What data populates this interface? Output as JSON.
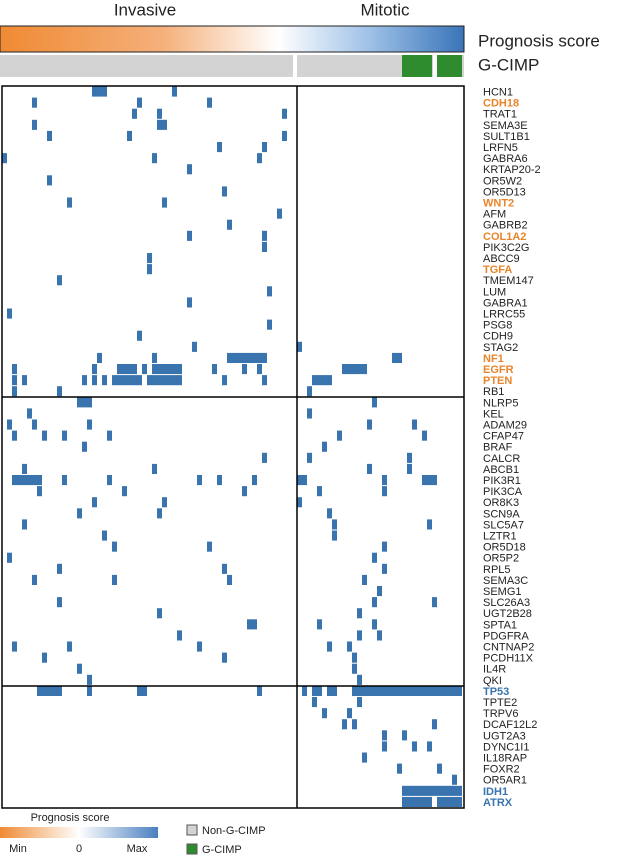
{
  "chart_data": {
    "type": "heatmap",
    "groups": [
      "Invasive",
      "Mitotic"
    ],
    "score_label": "Prognosis score",
    "gcimp_label": "G-CIMP",
    "gcimp_samples": [
      80,
      81,
      82,
      83,
      84,
      85,
      87,
      88,
      89,
      90,
      91
    ],
    "missing_samples": [
      58,
      86
    ],
    "mutation_color": "#3a74ae",
    "gcimp_color": "#2e8b2e",
    "non_gcimp_color": "#d3d3d3",
    "genes": [
      {
        "name": "HCN1",
        "samples": [
          18,
          19,
          20,
          34
        ]
      },
      {
        "name": "CDH18",
        "color": "#e8852a",
        "samples": [
          6,
          27,
          41
        ]
      },
      {
        "name": "TRAT1",
        "samples": [
          26,
          31,
          56
        ]
      },
      {
        "name": "SEMA3E",
        "samples": [
          6,
          31,
          32
        ]
      },
      {
        "name": "SULT1B1",
        "samples": [
          9,
          25,
          56
        ]
      },
      {
        "name": "LRFN5",
        "samples": [
          43,
          52
        ]
      },
      {
        "name": "GABRA6",
        "samples": [
          0,
          30,
          51
        ]
      },
      {
        "name": "KRTAP20-2",
        "samples": [
          37
        ]
      },
      {
        "name": "OR5W2",
        "samples": [
          9
        ]
      },
      {
        "name": "OR5D13",
        "samples": [
          44
        ]
      },
      {
        "name": "WNT2",
        "color": "#e8852a",
        "samples": [
          13,
          32
        ]
      },
      {
        "name": "AFM",
        "samples": [
          55
        ]
      },
      {
        "name": "GABRB2",
        "samples": [
          45
        ]
      },
      {
        "name": "COL1A2",
        "color": "#e8852a",
        "samples": [
          37,
          52
        ]
      },
      {
        "name": "PIK3C2G",
        "samples": [
          52
        ]
      },
      {
        "name": "ABCC9",
        "samples": [
          29
        ]
      },
      {
        "name": "TGFA",
        "color": "#e8852a",
        "samples": [
          29
        ]
      },
      {
        "name": "TMEM147",
        "samples": [
          11
        ]
      },
      {
        "name": "LUM",
        "samples": [
          53
        ]
      },
      {
        "name": "GABRA1",
        "samples": [
          37
        ]
      },
      {
        "name": "LRRC55",
        "samples": [
          1
        ]
      },
      {
        "name": "PSG8",
        "samples": [
          53
        ]
      },
      {
        "name": "CDH9",
        "samples": [
          27
        ]
      },
      {
        "name": "STAG2",
        "samples": [
          38,
          59
        ]
      },
      {
        "name": "NF1",
        "color": "#e8852a",
        "samples": [
          19,
          30,
          45,
          46,
          47,
          48,
          49,
          50,
          51,
          52,
          78,
          79
        ]
      },
      {
        "name": "EGFR",
        "color": "#e8852a",
        "samples": [
          2,
          18,
          23,
          24,
          25,
          26,
          28,
          30,
          31,
          32,
          33,
          34,
          35,
          42,
          48,
          51,
          68,
          69,
          70,
          71,
          72
        ]
      },
      {
        "name": "PTEN",
        "color": "#e8852a",
        "samples": [
          2,
          4,
          16,
          18,
          20,
          22,
          23,
          24,
          25,
          26,
          27,
          29,
          30,
          31,
          32,
          33,
          34,
          35,
          44,
          52,
          62,
          63,
          64,
          65
        ]
      },
      {
        "name": "RB1",
        "samples": [
          2,
          11,
          61
        ]
      },
      {
        "name": "NLRP5",
        "samples": [
          15,
          16,
          17,
          74
        ]
      },
      {
        "name": "KEL",
        "samples": [
          5,
          61
        ]
      },
      {
        "name": "ADAM29",
        "samples": [
          1,
          6,
          17,
          73,
          82
        ]
      },
      {
        "name": "CFAP47",
        "samples": [
          2,
          8,
          12,
          21,
          67,
          84
        ]
      },
      {
        "name": "BRAF",
        "samples": [
          16,
          64
        ]
      },
      {
        "name": "CALCR",
        "samples": [
          52,
          61,
          81
        ]
      },
      {
        "name": "ABCB1",
        "samples": [
          4,
          30,
          73,
          81
        ]
      },
      {
        "name": "PIK3R1",
        "samples": [
          2,
          3,
          4,
          5,
          6,
          7,
          12,
          21,
          39,
          43,
          50,
          59,
          60,
          76,
          84,
          85,
          86
        ]
      },
      {
        "name": "PIK3CA",
        "samples": [
          7,
          24,
          48,
          63,
          76
        ]
      },
      {
        "name": "OR8K3",
        "samples": [
          18,
          32,
          59
        ]
      },
      {
        "name": "SCN9A",
        "samples": [
          15,
          31,
          65
        ]
      },
      {
        "name": "SLC5A7",
        "samples": [
          4,
          66,
          85
        ]
      },
      {
        "name": "LZTR1",
        "samples": [
          20,
          66
        ]
      },
      {
        "name": "OR5D18",
        "samples": [
          22,
          41,
          76
        ]
      },
      {
        "name": "OR5P2",
        "samples": [
          1,
          74
        ]
      },
      {
        "name": "RPL5",
        "samples": [
          11,
          44,
          76
        ]
      },
      {
        "name": "SEMA3C",
        "samples": [
          6,
          22,
          45,
          72
        ]
      },
      {
        "name": "SEMG1",
        "samples": [
          75
        ]
      },
      {
        "name": "SLC26A3",
        "samples": [
          11,
          74,
          86
        ]
      },
      {
        "name": "UGT2B28",
        "samples": [
          31,
          71
        ]
      },
      {
        "name": "SPTA1",
        "samples": [
          49,
          50,
          63,
          74
        ]
      },
      {
        "name": "PDGFRA",
        "samples": [
          35,
          71,
          75
        ]
      },
      {
        "name": "CNTNAP2",
        "samples": [
          2,
          13,
          39,
          65,
          69
        ]
      },
      {
        "name": "PCDH11X",
        "samples": [
          8,
          44,
          70
        ]
      },
      {
        "name": "IL4R",
        "samples": [
          15,
          70
        ]
      },
      {
        "name": "QKI",
        "samples": [
          17,
          71
        ]
      },
      {
        "name": "TP53",
        "color": "#3a74ae",
        "samples": [
          7,
          8,
          9,
          10,
          11,
          17,
          27,
          28,
          51,
          60,
          62,
          63,
          65,
          66,
          70,
          71,
          72,
          73,
          74,
          75,
          76,
          77,
          78,
          79,
          80,
          81,
          82,
          83,
          84,
          85,
          86,
          87,
          88,
          89,
          90,
          91
        ]
      },
      {
        "name": "TPTE2",
        "samples": [
          62,
          71
        ]
      },
      {
        "name": "TRPV6",
        "samples": [
          64,
          69
        ]
      },
      {
        "name": "DCAF12L2",
        "samples": [
          68,
          70,
          86
        ]
      },
      {
        "name": "UGT2A3",
        "samples": [
          76,
          80
        ]
      },
      {
        "name": "DYNC1I1",
        "samples": [
          76,
          82,
          85
        ]
      },
      {
        "name": "IL18RAP",
        "samples": [
          72
        ]
      },
      {
        "name": "FOXR2",
        "samples": [
          79,
          87
        ]
      },
      {
        "name": "OR5AR1",
        "samples": [
          90
        ]
      },
      {
        "name": "IDH1",
        "color": "#3a74ae",
        "samples": [
          80,
          81,
          82,
          83,
          84,
          85,
          86,
          87,
          88,
          89,
          90,
          91
        ]
      },
      {
        "name": "ATRX",
        "color": "#3a74ae",
        "samples": [
          80,
          81,
          82,
          83,
          84,
          85,
          87,
          88,
          89,
          90,
          91
        ]
      }
    ],
    "legend": {
      "title": "Prognosis score",
      "min": "Min",
      "mid": "0",
      "max": "Max",
      "non_gcimp": "Non-G-CIMP",
      "gcimp": "G-CIMP"
    }
  }
}
